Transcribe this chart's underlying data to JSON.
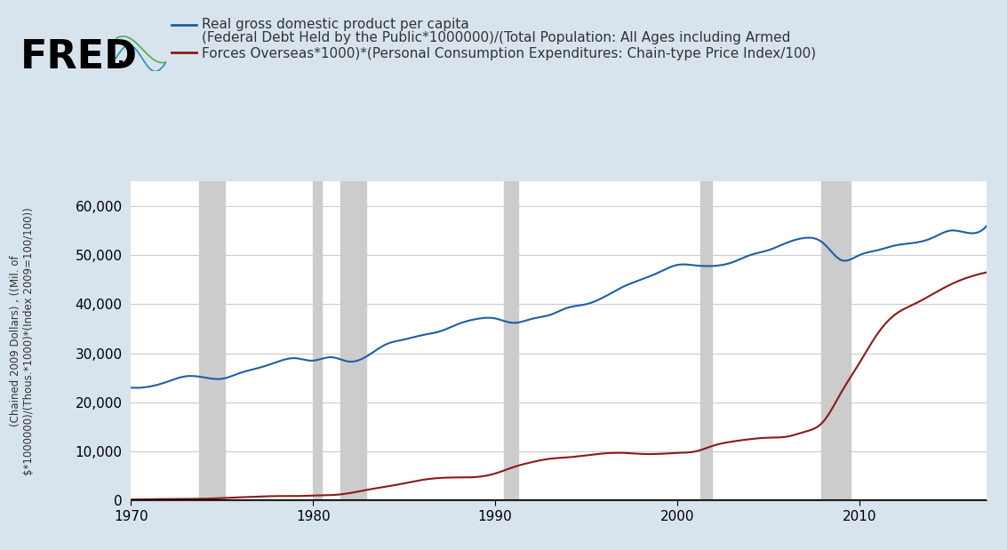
{
  "title_line1": "Real gross domestic product per capita",
  "title_line2": "(Federal Debt Held by the Public*1000000)/(Total Population: All Ages including Armed\nForces Overseas*1000)*(Personal Consumption Expenditures: Chain-type Price Index/100)",
  "ylabel": "(Chained 2009 Dollars) , ((Mil. of\n$*1000000)/(Thous.*1000)*(Index 2009=100/100))",
  "background_color": "#d8e4ed",
  "plot_bg_color": "#ffffff",
  "grid_color": "#cccccc",
  "line1_color": "#1f5fa6",
  "line2_color": "#8b1a1a",
  "fred_text_color": "#000000",
  "xmin": 1970,
  "xmax": 2017,
  "ymin": 0,
  "ymax": 65000,
  "yticks": [
    0,
    10000,
    20000,
    30000,
    40000,
    50000,
    60000
  ],
  "xticks": [
    1970,
    1980,
    1990,
    2000,
    2010
  ],
  "recession_bands": [
    [
      1973.75,
      1975.17
    ],
    [
      1980.0,
      1980.5
    ],
    [
      1981.5,
      1982.92
    ],
    [
      1990.5,
      1991.25
    ],
    [
      2001.25,
      2001.92
    ],
    [
      2007.92,
      2009.5
    ]
  ],
  "gdp_per_capita": {
    "years": [
      1970,
      1971,
      1972,
      1973,
      1974,
      1975,
      1976,
      1977,
      1978,
      1979,
      1980,
      1981,
      1982,
      1983,
      1984,
      1985,
      1986,
      1987,
      1988,
      1989,
      1990,
      1991,
      1992,
      1993,
      1994,
      1995,
      1996,
      1997,
      1998,
      1999,
      2000,
      2001,
      2002,
      2003,
      2004,
      2005,
      2006,
      2007,
      2008,
      2009,
      2010,
      2011,
      2012,
      2013,
      2014,
      2015,
      2016,
      2017
    ],
    "values": [
      23000,
      23200,
      24200,
      25300,
      25100,
      24800,
      26000,
      27000,
      28200,
      29000,
      28500,
      29200,
      28300,
      29500,
      31800,
      32800,
      33700,
      34500,
      36000,
      37000,
      37100,
      36200,
      37000,
      37800,
      39300,
      40000,
      41500,
      43500,
      45000,
      46500,
      48000,
      47900,
      47800,
      48500,
      50000,
      51000,
      52500,
      53500,
      52500,
      49000,
      50000,
      51000,
      52000,
      52500,
      53500,
      55000,
      54500,
      56000
    ],
    "quarterly_years": [],
    "quarterly_values": []
  },
  "debt_per_capita": {
    "years": [
      1970,
      1971,
      1972,
      1973,
      1974,
      1975,
      1976,
      1977,
      1978,
      1979,
      1980,
      1981,
      1982,
      1983,
      1984,
      1985,
      1986,
      1987,
      1988,
      1989,
      1990,
      1991,
      1992,
      1993,
      1994,
      1995,
      1996,
      1997,
      1998,
      1999,
      2000,
      2001,
      2002,
      2003,
      2004,
      2005,
      2006,
      2007,
      2008,
      2009,
      2010,
      2011,
      2012,
      2013,
      2014,
      2015,
      2016,
      2017
    ],
    "values": [
      200,
      250,
      300,
      320,
      350,
      500,
      650,
      800,
      900,
      900,
      1000,
      1100,
      1500,
      2200,
      2800,
      3500,
      4200,
      4600,
      4700,
      4800,
      5500,
      6800,
      7800,
      8500,
      8800,
      9200,
      9600,
      9700,
      9500,
      9500,
      9700,
      10000,
      11200,
      12000,
      12500,
      12800,
      13000,
      14000,
      16000,
      22000,
      28000,
      34000,
      38000,
      40000,
      42000,
      44000,
      45500,
      46500
    ]
  }
}
